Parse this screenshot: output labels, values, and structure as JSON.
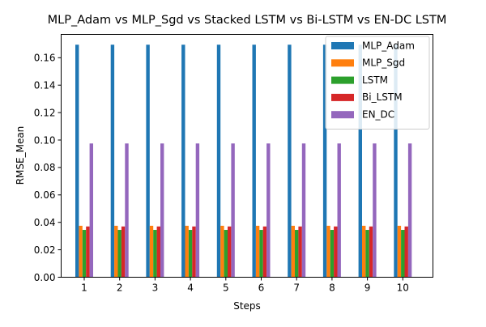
{
  "chart_data": {
    "type": "bar",
    "title": "MLP_Adam vs MLP_Sgd vs Stacked LSTM vs Bi-LSTM vs EN-DC LSTM",
    "xlabel": "Steps",
    "ylabel": "RMSE_Mean",
    "categories": [
      "1",
      "2",
      "3",
      "4",
      "5",
      "6",
      "7",
      "8",
      "9",
      "10"
    ],
    "ylim": [
      0,
      0.177
    ],
    "yticks": [
      0.0,
      0.02,
      0.04,
      0.06,
      0.08,
      0.1,
      0.12,
      0.14,
      0.16
    ],
    "ytick_labels": [
      "0.00",
      "0.02",
      "0.04",
      "0.06",
      "0.08",
      "0.10",
      "0.12",
      "0.14",
      "0.16"
    ],
    "grid": false,
    "legend_position": "top-right",
    "series": [
      {
        "name": "MLP_Adam",
        "color": "#1f77b4",
        "values": [
          0.1695,
          0.1695,
          0.1695,
          0.1695,
          0.1695,
          0.1695,
          0.1695,
          0.1695,
          0.1695,
          0.1695
        ]
      },
      {
        "name": "MLP_Sgd",
        "color": "#ff7f0e",
        "values": [
          0.0375,
          0.0375,
          0.0375,
          0.0375,
          0.0375,
          0.0375,
          0.0375,
          0.0375,
          0.0375,
          0.0375
        ]
      },
      {
        "name": "LSTM",
        "color": "#2ca02c",
        "values": [
          0.0345,
          0.0345,
          0.0345,
          0.0345,
          0.0345,
          0.0345,
          0.0345,
          0.0345,
          0.0345,
          0.0345
        ]
      },
      {
        "name": "Bi_LSTM",
        "color": "#d62728",
        "values": [
          0.037,
          0.037,
          0.037,
          0.037,
          0.037,
          0.037,
          0.037,
          0.037,
          0.037,
          0.037
        ]
      },
      {
        "name": "EN_DC",
        "color": "#9467bd",
        "values": [
          0.0975,
          0.0975,
          0.0975,
          0.0975,
          0.0975,
          0.0975,
          0.0975,
          0.0975,
          0.0975,
          0.0975
        ]
      }
    ]
  }
}
